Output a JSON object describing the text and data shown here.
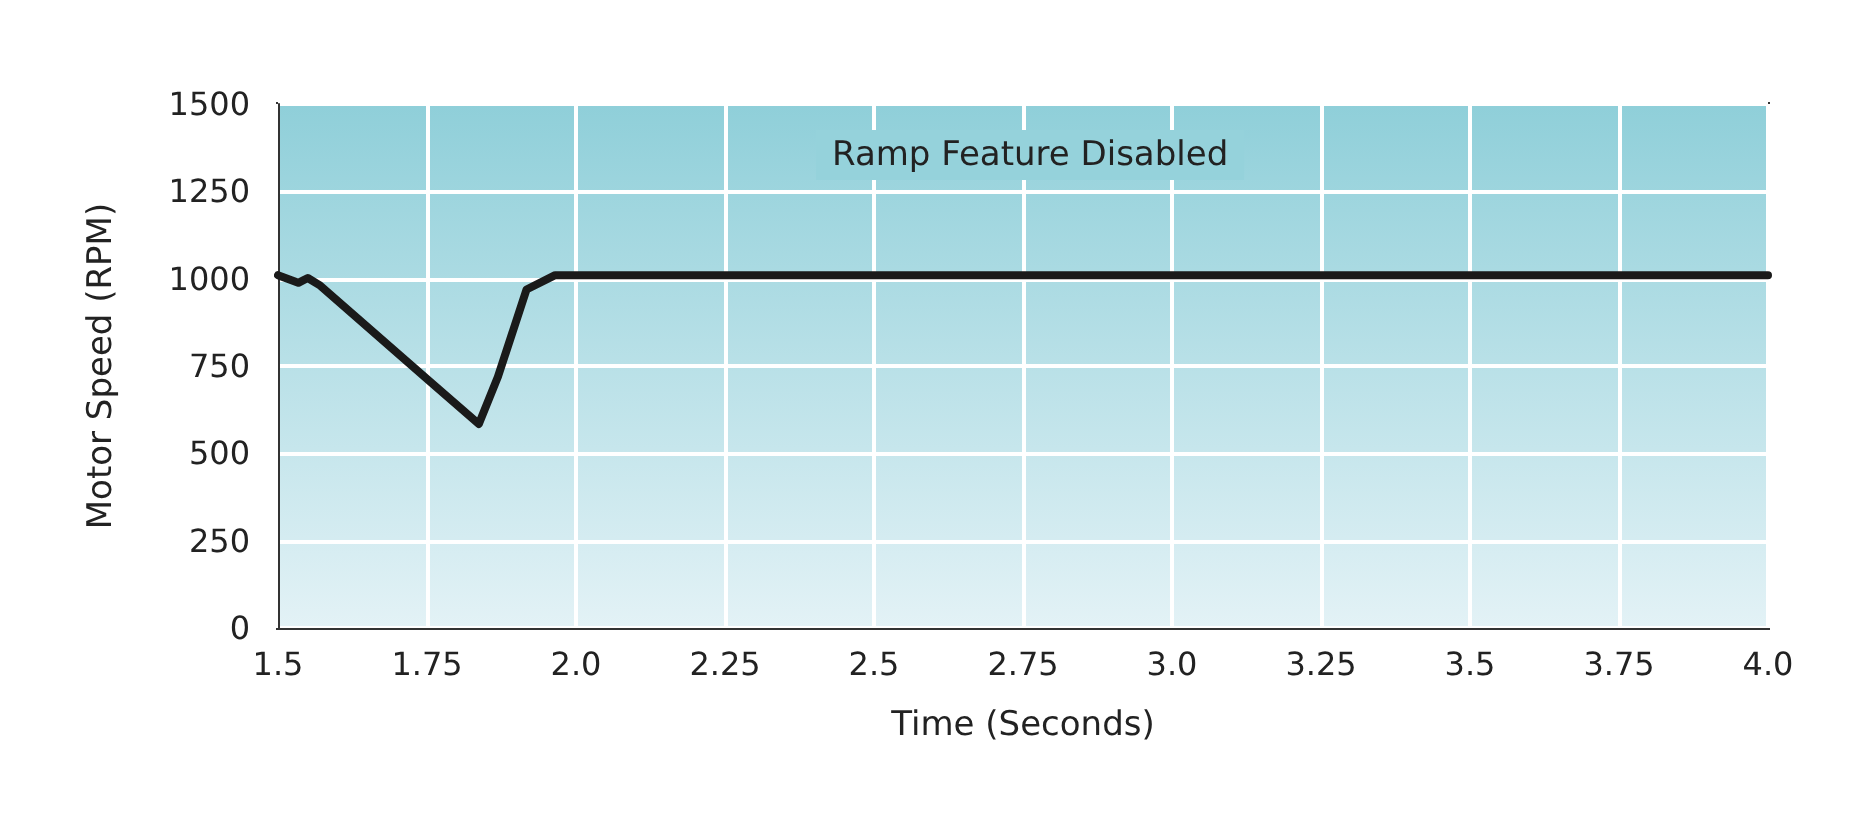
{
  "chart_data": {
    "type": "line",
    "xlabel": "Time (Seconds)",
    "ylabel": "Motor Speed (RPM)",
    "annotations": [
      "Ramp Feature Disabled"
    ],
    "x": [
      1.5,
      1.534,
      1.55,
      1.571,
      1.752,
      1.837,
      1.869,
      1.917,
      1.965,
      2.1,
      4.0
    ],
    "series": [
      {
        "color": "#1a1a1a",
        "values": [
          1010,
          988,
          1002,
          980,
          710,
          584,
          719,
          969,
          1010,
          1010,
          1010
        ]
      }
    ],
    "xlim": [
      1.5,
      4.0
    ],
    "xticks": [
      1.5,
      1.75,
      {
        "value": 2,
        "label": "2.0"
      },
      2.25,
      2.5,
      2.75,
      {
        "value": 3,
        "label": "3.0"
      },
      3.25,
      3.5,
      3.75,
      {
        "value": 4,
        "label": "4.0"
      }
    ],
    "ylim": [
      0,
      1500
    ],
    "yticks": [
      0,
      250,
      500,
      750,
      1000,
      1250,
      1500
    ],
    "grid": true,
    "marker": "none",
    "line_style": "solid"
  }
}
